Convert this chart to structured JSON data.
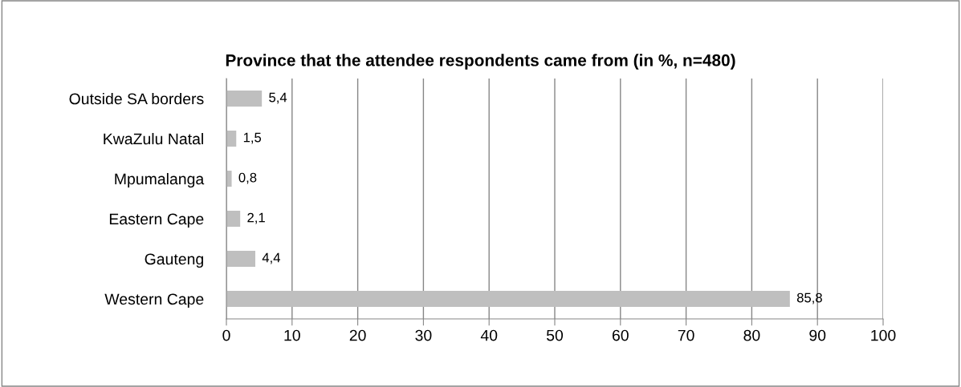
{
  "chart_data": {
    "type": "bar",
    "orientation": "horizontal",
    "title": "Province that the attendee respondents came from (in %, n=480)",
    "categories": [
      "Outside SA borders",
      "KwaZulu Natal",
      "Mpumalanga",
      "Eastern Cape",
      "Gauteng",
      "Western Cape"
    ],
    "values": [
      5.4,
      1.5,
      0.8,
      2.1,
      4.4,
      85.8
    ],
    "value_labels": [
      "5,4",
      "1,5",
      "0,8",
      "2,1",
      "4,4",
      "85,8"
    ],
    "color": "#bfbfbf",
    "xlim": [
      0,
      100
    ],
    "xticks": [
      0,
      10,
      20,
      30,
      40,
      50,
      60,
      70,
      80,
      90,
      100
    ],
    "grid": "x",
    "legend": false
  }
}
